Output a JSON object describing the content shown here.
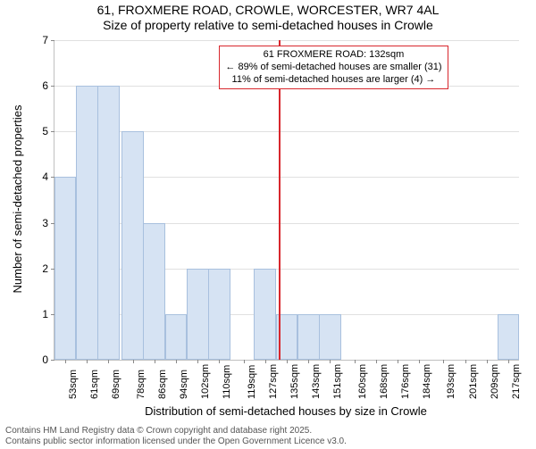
{
  "title_line1": "61, FROXMERE ROAD, CROWLE, WORCESTER, WR7 4AL",
  "title_line2": "Size of property relative to semi-detached houses in Crowle",
  "y_axis_label": "Number of semi-detached properties",
  "x_axis_label": "Distribution of semi-detached houses by size in Crowle",
  "chart": {
    "type": "histogram",
    "background_color": "#ffffff",
    "grid_color": "#e0e0e0",
    "axis_color": "#c0c0c0",
    "bar_fill": "#d6e3f3",
    "bar_border": "#a8c0de",
    "marker_line_color": "#d8272d",
    "annotation_border": "#d8272d",
    "ylim": [
      0,
      7
    ],
    "yticks": [
      0,
      1,
      2,
      3,
      4,
      5,
      6,
      7
    ],
    "xlim": [
      49,
      221
    ],
    "x_tick_values": [
      53,
      61,
      69,
      78,
      86,
      94,
      102,
      110,
      119,
      127,
      135,
      143,
      151,
      160,
      168,
      176,
      184,
      193,
      201,
      209,
      217
    ],
    "x_tick_labels": [
      "53sqm",
      "61sqm",
      "69sqm",
      "78sqm",
      "86sqm",
      "94sqm",
      "102sqm",
      "110sqm",
      "119sqm",
      "127sqm",
      "135sqm",
      "143sqm",
      "151sqm",
      "160sqm",
      "168sqm",
      "176sqm",
      "184sqm",
      "193sqm",
      "201sqm",
      "209sqm",
      "217sqm"
    ],
    "bar_half_width": 4.1,
    "bars": [
      {
        "x": 53,
        "y": 4
      },
      {
        "x": 61,
        "y": 6
      },
      {
        "x": 69,
        "y": 6
      },
      {
        "x": 78,
        "y": 5
      },
      {
        "x": 86,
        "y": 3
      },
      {
        "x": 94,
        "y": 1
      },
      {
        "x": 102,
        "y": 2
      },
      {
        "x": 110,
        "y": 2
      },
      {
        "x": 119,
        "y": 0
      },
      {
        "x": 127,
        "y": 2
      },
      {
        "x": 135,
        "y": 1
      },
      {
        "x": 143,
        "y": 1
      },
      {
        "x": 151,
        "y": 1
      },
      {
        "x": 160,
        "y": 0
      },
      {
        "x": 168,
        "y": 0
      },
      {
        "x": 176,
        "y": 0
      },
      {
        "x": 184,
        "y": 0
      },
      {
        "x": 193,
        "y": 0
      },
      {
        "x": 201,
        "y": 0
      },
      {
        "x": 209,
        "y": 0
      },
      {
        "x": 217,
        "y": 1
      }
    ],
    "marker_x": 132
  },
  "annotation": {
    "line1": "61 FROXMERE ROAD: 132sqm",
    "line2": "← 89% of semi-detached houses are smaller (31)",
    "line3": "11% of semi-detached houses are larger (4) →"
  },
  "footer_line1": "Contains HM Land Registry data © Crown copyright and database right 2025.",
  "footer_line2": "Contains public sector information licensed under the Open Government Licence v3.0."
}
